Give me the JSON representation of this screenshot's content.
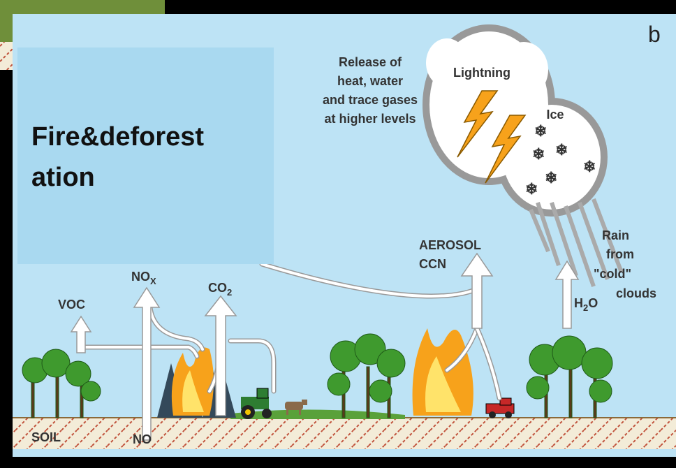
{
  "panel_label": "b",
  "overlay": {
    "title_lines": [
      "Fire&deforest",
      "ation"
    ]
  },
  "labels": {
    "release": [
      "Release of",
      "heat, water",
      "and trace gases",
      "at higher levels"
    ],
    "lightning": "Lightning",
    "ice": "Ice",
    "aerosol": [
      "AEROSOL",
      "CCN"
    ],
    "rain": [
      "Rain",
      "from",
      "\"cold\"",
      "clouds"
    ],
    "voc": "VOC",
    "nox": {
      "main": "NO",
      "sub": "X"
    },
    "co2": {
      "main": "CO",
      "sub": "2"
    },
    "h2o": {
      "main": "H",
      "sub": "2",
      "tail": "O"
    },
    "soil": "SOIL",
    "no": "NO"
  }
}
